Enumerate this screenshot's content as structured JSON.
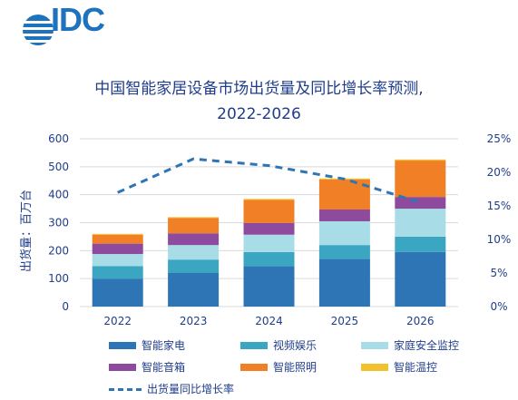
{
  "logo": {
    "text": "IDC"
  },
  "title": {
    "line1": "中国智能家居设备市场出货量及同比增长率预测,",
    "line2": "2022-2026"
  },
  "chart_data": {
    "type": "bar",
    "stacked": true,
    "categories": [
      "2022",
      "2023",
      "2024",
      "2025",
      "2026"
    ],
    "ylabel": "出货量：百万台",
    "ylim": [
      0,
      600
    ],
    "yticks": [
      "0",
      "100",
      "200",
      "300",
      "400",
      "500",
      "600"
    ],
    "y2lim": [
      0,
      25
    ],
    "y2ticks": [
      "0%",
      "5%",
      "10%",
      "15%",
      "20%",
      "25%"
    ],
    "grid": true,
    "legend_position": "bottom",
    "series": [
      {
        "name": "智能家电",
        "color": "#2e75b6",
        "values": [
          100,
          120,
          145,
          170,
          195
        ]
      },
      {
        "name": "视频娱乐",
        "color": "#3aa6c2",
        "values": [
          45,
          48,
          50,
          50,
          55
        ]
      },
      {
        "name": "家庭安全监控",
        "color": "#a8dce7",
        "values": [
          43,
          52,
          62,
          85,
          100
        ]
      },
      {
        "name": "智能音箱",
        "color": "#8e4a9c",
        "values": [
          37,
          42,
          42,
          42,
          42
        ]
      },
      {
        "name": "智能照明",
        "color": "#f07f26",
        "values": [
          32,
          55,
          82,
          107,
          130
        ]
      },
      {
        "name": "智能温控",
        "color": "#f2c12e",
        "values": [
          3,
          3,
          4,
          4,
          4
        ]
      }
    ],
    "line_series": {
      "name": "出货量同比增长率",
      "color": "#2e75b6",
      "values": [
        17,
        22,
        21,
        19,
        15.5
      ]
    }
  }
}
